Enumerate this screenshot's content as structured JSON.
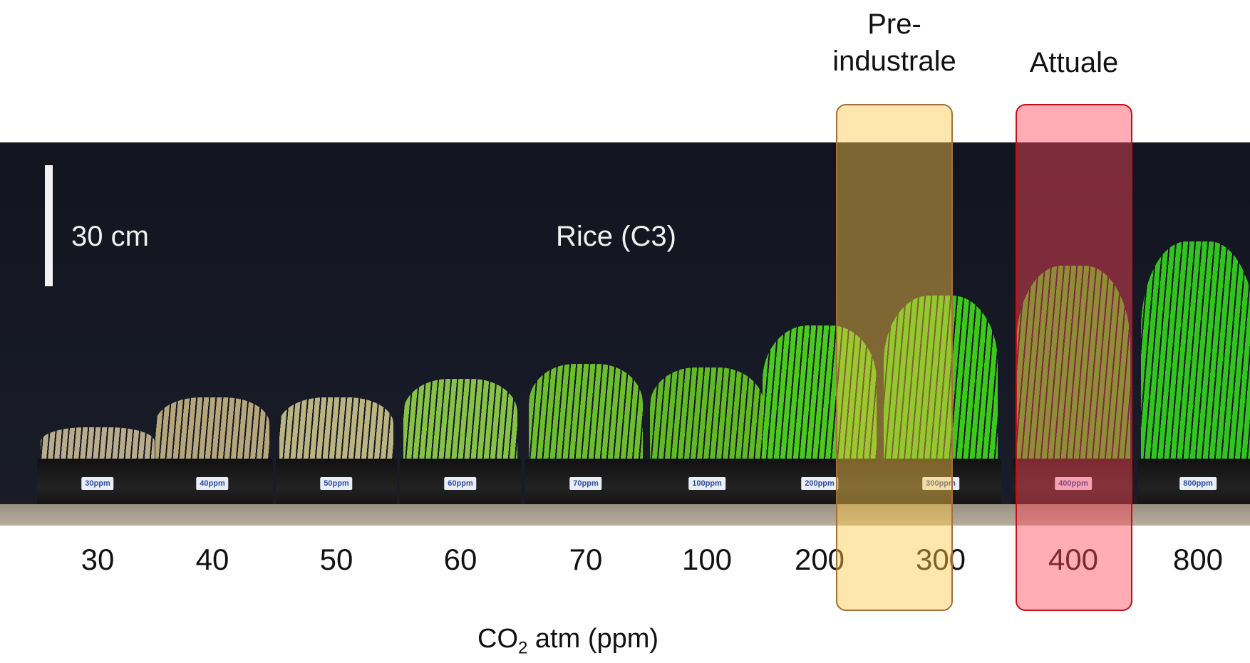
{
  "scale_label": "30 cm",
  "plant_title": "Rice (C3)",
  "axis_title_prefix": "CO",
  "axis_title_sub": "2",
  "axis_title_suffix": " atm (ppm)",
  "highlights": {
    "pre_industrial": {
      "line1": "Pre-",
      "line2": "industrale",
      "color": "#ffc846"
    },
    "current": {
      "label": "Attuale",
      "color": "#ff465a"
    }
  },
  "trays": [
    {
      "tag": "30ppm",
      "value": "30",
      "color": "#c7b995",
      "height": 0.12
    },
    {
      "tag": "40ppm",
      "value": "40",
      "color": "#c4b283",
      "height": 0.22
    },
    {
      "tag": "50ppm",
      "value": "50",
      "color": "#c9c28a",
      "height": 0.22
    },
    {
      "tag": "60ppm",
      "value": "60",
      "color": "#8fd14a",
      "height": 0.28
    },
    {
      "tag": "70ppm",
      "value": "70",
      "color": "#74cc2f",
      "height": 0.33
    },
    {
      "tag": "100ppm",
      "value": "100",
      "color": "#67c825",
      "height": 0.32
    },
    {
      "tag": "200ppm",
      "value": "200",
      "color": "#4fd81d",
      "height": 0.46
    },
    {
      "tag": "300ppm",
      "value": "300",
      "color": "#3ed81a",
      "height": 0.56
    },
    {
      "tag": "400ppm",
      "value": "400",
      "color": "#38d61c",
      "height": 0.66
    },
    {
      "tag": "800ppm",
      "value": "800",
      "color": "#33d41e",
      "height": 0.74
    }
  ]
}
